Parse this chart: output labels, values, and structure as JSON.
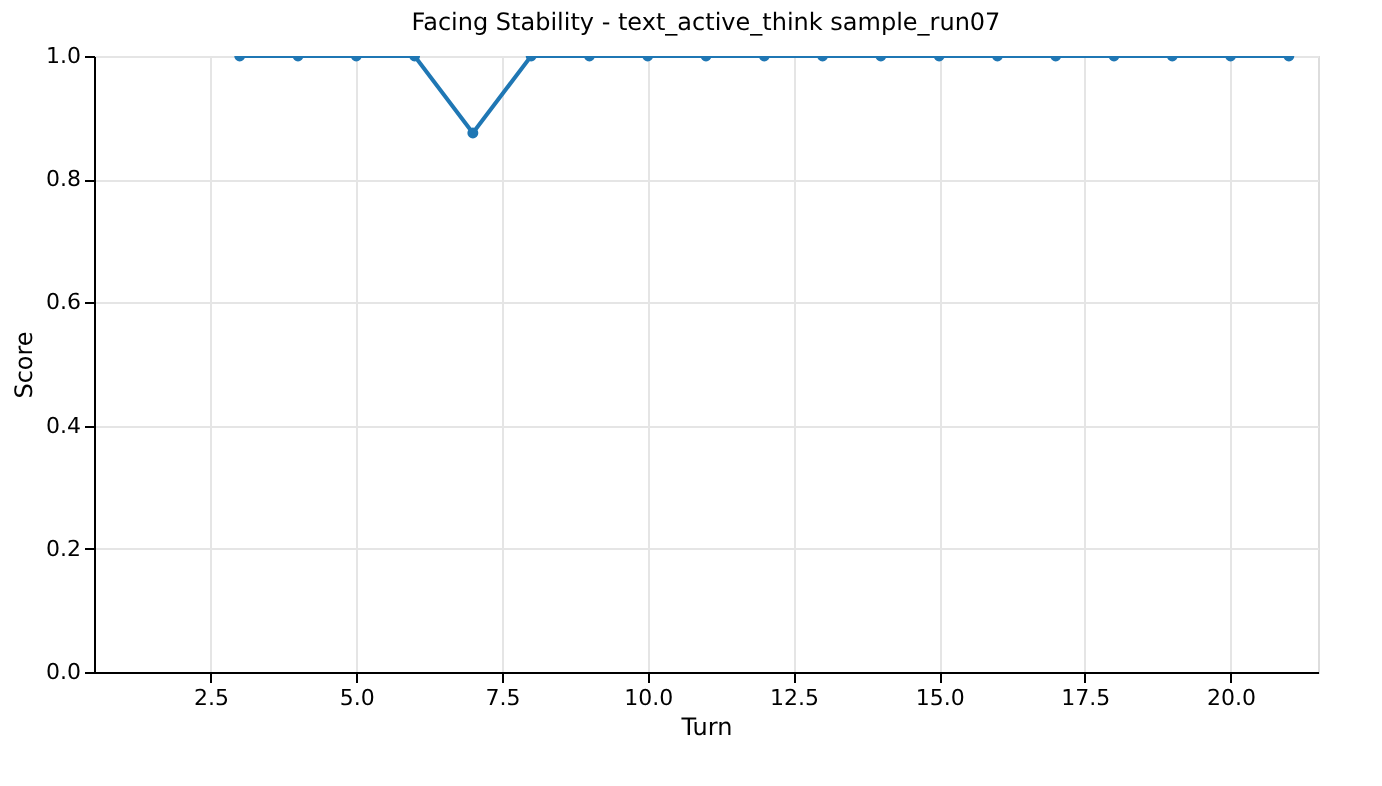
{
  "chart_data": {
    "type": "line",
    "title": "Facing Stability - text_active_think sample_run07",
    "xlabel": "Turn",
    "ylabel": "Score",
    "x": [
      3,
      4,
      5,
      6,
      7,
      8,
      9,
      10,
      11,
      12,
      13,
      14,
      15,
      16,
      17,
      18,
      19,
      20,
      21
    ],
    "series": [
      {
        "color": "#1f77b4",
        "values": [
          1,
          1,
          1,
          1,
          0.875,
          1,
          1,
          1,
          1,
          1,
          1,
          1,
          1,
          1,
          1,
          1,
          1,
          1,
          1
        ]
      }
    ],
    "xlim": [
      0.5,
      21.5
    ],
    "xticks": [
      {
        "value": 2.5,
        "label": "2.5"
      },
      {
        "value": 5,
        "label": "5.0"
      },
      {
        "value": 7.5,
        "label": "7.5"
      },
      {
        "value": 10,
        "label": "10.0"
      },
      {
        "value": 12.5,
        "label": "12.5"
      },
      {
        "value": 15,
        "label": "15.0"
      },
      {
        "value": 17.5,
        "label": "17.5"
      },
      {
        "value": 20,
        "label": "20.0"
      }
    ],
    "ylim": [
      0,
      1
    ],
    "yticks": [
      {
        "value": 0,
        "label": "0.0"
      },
      {
        "value": 0.2,
        "label": "0.2"
      },
      {
        "value": 0.4,
        "label": "0.4"
      },
      {
        "value": 0.6,
        "label": "0.6"
      },
      {
        "value": 0.8,
        "label": "0.8"
      },
      {
        "value": 1,
        "label": "1.0"
      }
    ],
    "grid": true,
    "marker": "circle",
    "line_style": "solid"
  }
}
